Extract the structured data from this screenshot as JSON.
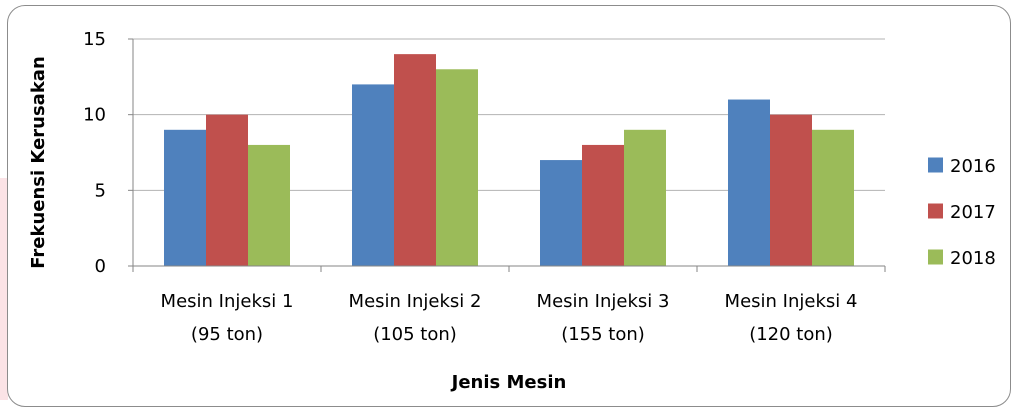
{
  "chart_data": {
    "type": "bar",
    "categories": [
      [
        "Mesin Injeksi 1",
        "(95 ton)"
      ],
      [
        "Mesin Injeksi 2",
        "(105 ton)"
      ],
      [
        "Mesin Injeksi 3",
        "(155 ton)"
      ],
      [
        "Mesin Injeksi 4",
        "(120 ton)"
      ]
    ],
    "series": [
      {
        "name": "2016",
        "color": "#4f81bd",
        "values": [
          9,
          12,
          7,
          11
        ]
      },
      {
        "name": "2017",
        "color": "#c0504d",
        "values": [
          10,
          14,
          8,
          10
        ]
      },
      {
        "name": "2018",
        "color": "#9bbb59",
        "values": [
          8,
          13,
          9,
          9
        ]
      }
    ],
    "xlabel": "Jenis Mesin",
    "ylabel": "Frekuensi Kerusakan",
    "ylim": [
      0,
      15
    ],
    "yticks": [
      0,
      5,
      10,
      15
    ],
    "grid": true,
    "legend": "right"
  },
  "colors": {
    "gridline": "#b3b3b3",
    "axis": "#868686",
    "frame": "#8c8c8c"
  }
}
